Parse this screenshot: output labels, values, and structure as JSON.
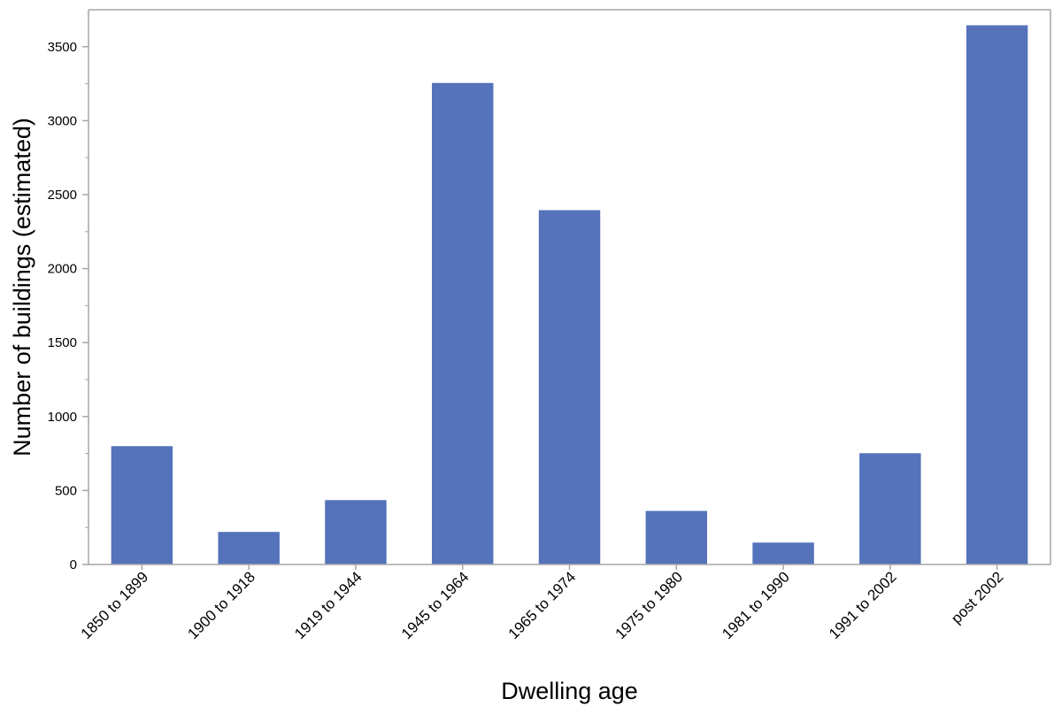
{
  "chart_data": {
    "type": "bar",
    "categories": [
      "1850 to 1899",
      "1900 to 1918",
      "1919 to 1944",
      "1945 to 1964",
      "1965 to 1974",
      "1975 to 1980",
      "1981 to 1990",
      "1991 to 2002",
      "post 2002"
    ],
    "values": [
      800,
      220,
      435,
      3255,
      2395,
      362,
      148,
      752,
      3645
    ],
    "xlabel": "Dwelling age",
    "ylabel": "Number of buildings (estimated)",
    "ylim": [
      0,
      3750
    ],
    "yticks": [
      0,
      500,
      1000,
      1500,
      2000,
      2500,
      3000,
      3500
    ],
    "grid": false,
    "legend": "none",
    "colors": {
      "bar": "#5473bb",
      "axis": "#a6a6a6"
    }
  }
}
